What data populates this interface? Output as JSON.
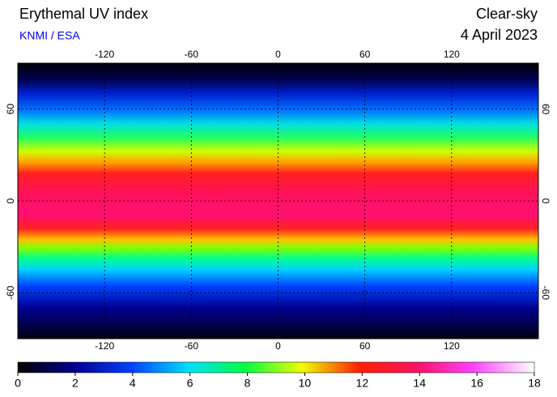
{
  "header": {
    "title": "Erythemal UV index",
    "source": "KNMI / ESA",
    "condition": "Clear-sky",
    "date": "4 April 2023"
  },
  "map": {
    "xlim": [
      -180,
      180
    ],
    "ylim": [
      -90,
      90
    ],
    "xticks": [
      -120,
      -60,
      0,
      60,
      120
    ],
    "yticks": [
      60,
      0,
      -60
    ]
  },
  "colorbar": {
    "lim": [
      0,
      18
    ],
    "ticks": [
      0,
      2,
      4,
      6,
      8,
      10,
      12,
      14,
      16,
      18
    ]
  }
}
